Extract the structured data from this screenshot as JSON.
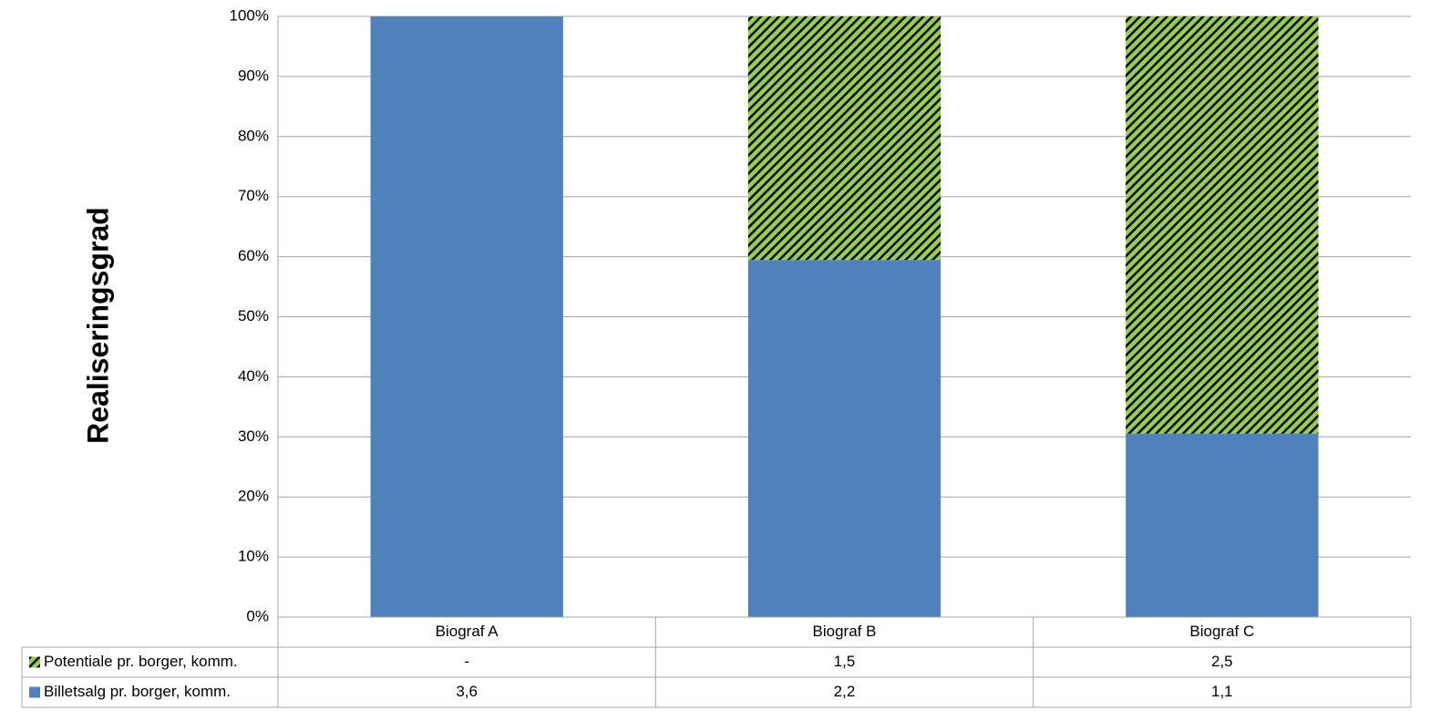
{
  "chart_data": {
    "type": "bar",
    "stacked": "percent",
    "y_label": "Realiseringsgrad",
    "categories": [
      "Biograf A",
      "Biograf B",
      "Biograf C"
    ],
    "series": [
      {
        "name": "Billetsalg pr. borger, komm.",
        "color": "#4f81bd",
        "values": [
          3.6,
          2.2,
          1.1
        ],
        "value_labels": [
          "3,6",
          "2,2",
          "1,1"
        ]
      },
      {
        "name": "Potentiale pr. borger, komm.",
        "color": "#92d050",
        "pattern": "hatch",
        "values": [
          null,
          1.5,
          2.5
        ],
        "value_labels": [
          "-",
          "1,5",
          "2,5"
        ]
      }
    ],
    "ylim": [
      0,
      100
    ],
    "yticks": [
      {
        "value": 0,
        "label": "0%"
      },
      {
        "value": 10,
        "label": "10%"
      },
      {
        "value": 20,
        "label": "20%"
      },
      {
        "value": 30,
        "label": "30%"
      },
      {
        "value": 40,
        "label": "40%"
      },
      {
        "value": 50,
        "label": "50%"
      },
      {
        "value": 60,
        "label": "60%"
      },
      {
        "value": 70,
        "label": "70%"
      },
      {
        "value": 80,
        "label": "80%"
      },
      {
        "value": 90,
        "label": "90%"
      },
      {
        "value": 100,
        "label": "100%"
      }
    ],
    "grid": true
  }
}
